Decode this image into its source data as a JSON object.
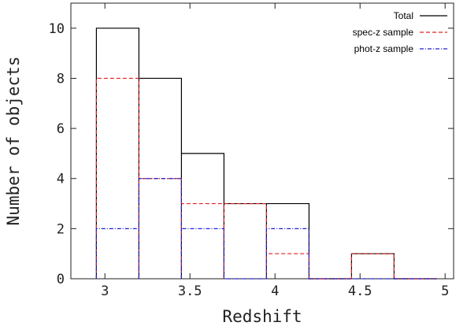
{
  "chart_data": {
    "type": "histogram",
    "xlabel": "Redshift",
    "ylabel": "Number of objects",
    "xlim": [
      2.8,
      5.05
    ],
    "ylim": [
      0,
      11
    ],
    "xticks": [
      3,
      3.5,
      4,
      4.5,
      5
    ],
    "xtick_labels": [
      "3",
      "3.5",
      "4",
      "4.5",
      "5"
    ],
    "yticks": [
      0,
      2,
      4,
      6,
      8,
      10
    ],
    "ytick_labels": [
      "0",
      "2",
      "4",
      "6",
      "8",
      "10"
    ],
    "bin_edges": [
      2.95,
      3.2,
      3.45,
      3.7,
      3.95,
      4.2,
      4.45,
      4.7,
      4.95
    ],
    "series": [
      {
        "name": "Total",
        "color": "#000000",
        "dash": "solid",
        "values": [
          10,
          8,
          5,
          3,
          3,
          0,
          1,
          0
        ]
      },
      {
        "name": "spec-z sample",
        "color": "#e02020",
        "dash": "dashed",
        "values": [
          8,
          4,
          3,
          3,
          1,
          0,
          1,
          0
        ]
      },
      {
        "name": "phot-z sample",
        "color": "#2020d0",
        "dash": "dash-dot",
        "values": [
          2,
          4,
          2,
          0,
          2,
          0,
          0,
          0
        ]
      }
    ],
    "legend_position": "top-right",
    "grid": false
  }
}
